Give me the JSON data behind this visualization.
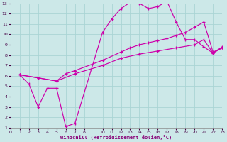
{
  "xlabel": "Windchill (Refroidissement éolien,°C)",
  "bg_color": "#cce8e8",
  "line_color": "#cc00aa",
  "grid_color": "#aad4d4",
  "xlim": [
    0,
    23
  ],
  "ylim": [
    1,
    13
  ],
  "xticks": [
    0,
    1,
    2,
    3,
    4,
    5,
    6,
    7,
    8,
    10,
    11,
    12,
    13,
    14,
    15,
    16,
    17,
    18,
    19,
    20,
    21,
    22,
    23
  ],
  "yticks": [
    1,
    2,
    3,
    4,
    5,
    6,
    7,
    8,
    9,
    10,
    11,
    12,
    13
  ],
  "line1_x": [
    1,
    2,
    3,
    4,
    5,
    6,
    7,
    10,
    11,
    12,
    13,
    14,
    15,
    16,
    17,
    18,
    19,
    20,
    21,
    22,
    23
  ],
  "line1_y": [
    6.1,
    5.2,
    3.0,
    4.8,
    4.8,
    1.1,
    1.4,
    10.2,
    11.5,
    12.5,
    13.1,
    13.0,
    12.5,
    12.7,
    13.2,
    11.2,
    9.5,
    9.5,
    8.8,
    8.2,
    8.8
  ],
  "line2_x": [
    1,
    3,
    5,
    6,
    7,
    10,
    12,
    13,
    14,
    15,
    16,
    17,
    18,
    19,
    20,
    21,
    22,
    23
  ],
  "line2_y": [
    6.1,
    5.8,
    5.5,
    6.2,
    6.5,
    7.5,
    8.3,
    8.7,
    9.0,
    9.2,
    9.4,
    9.6,
    9.9,
    10.2,
    10.7,
    11.2,
    8.3,
    8.7
  ],
  "line3_x": [
    1,
    3,
    5,
    7,
    10,
    12,
    14,
    16,
    18,
    20,
    21,
    22,
    23
  ],
  "line3_y": [
    6.1,
    5.8,
    5.5,
    6.2,
    7.0,
    7.7,
    8.1,
    8.4,
    8.7,
    9.0,
    9.5,
    8.2,
    8.7
  ]
}
